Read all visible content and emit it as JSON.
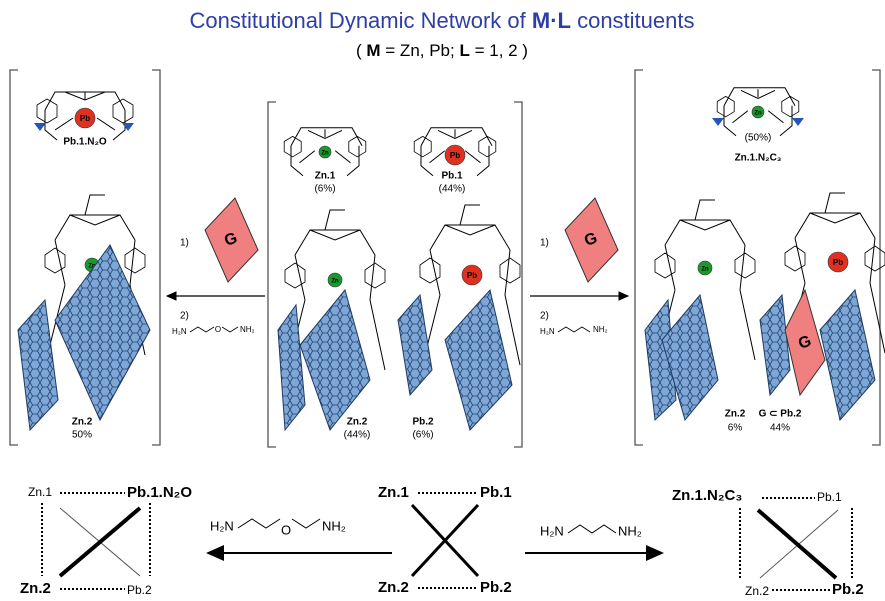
{
  "title": {
    "start": "Constitutional Dynamic Network of ",
    "bold": "M·L",
    "end": " constituents"
  },
  "subtitle": {
    "open": "( ",
    "m": "M",
    "mid": " = Zn, Pb; ",
    "l": "L",
    "end": " = 1, 2 )"
  },
  "left_panel": {
    "top_label": "Pb.1.N₂O",
    "metal_top": "Pb",
    "metal_bottom": "Zn",
    "bottom_label": "Zn.2",
    "bottom_pct": "50%"
  },
  "center_panel": {
    "zn1": "Zn.1",
    "zn1_pct": "(6%)",
    "pb1": "Pb.1",
    "pb1_pct": "(44%)",
    "zn2": "Zn.2",
    "zn2_pct": "(44%)",
    "pb2": "Pb.2",
    "pb2_pct": "(6%)",
    "metal_zn1": "Zn",
    "metal_pb1": "Pb",
    "metal_zn2": "Zn",
    "metal_pb2": "Pb"
  },
  "right_panel": {
    "top_pct": "(50%)",
    "top_label": "Zn.1.N₂C₃",
    "metal_top": "Zn",
    "metal_zn2": "Zn",
    "metal_pb2": "Pb",
    "guest": "G",
    "zn2": "Zn.2",
    "zn2_pct": "6%",
    "pb2": "G ⊂ Pb.2",
    "pb2_pct": "44%"
  },
  "left_arrow": {
    "step1": "1)",
    "guest": "G",
    "step2": "2)",
    "h2n": "H₂N",
    "o": "O",
    "nh2": "NH₂"
  },
  "right_arrow": {
    "step1": "1)",
    "guest": "G",
    "step2": "2)",
    "h2n": "H₂N",
    "nh2": "NH₂"
  },
  "bottom_left": {
    "tl": "Zn.1",
    "tr": "Pb.1.N₂O",
    "bl": "Zn.2",
    "br": "Pb.2"
  },
  "bottom_center": {
    "tl": "Zn.1",
    "tr": "Pb.1",
    "bl": "Zn.2",
    "br": "Pb.2"
  },
  "bottom_right": {
    "tl": "Zn.1.N₂C₃",
    "tr": "Pb.1",
    "bl": "Zn.2",
    "br": "Pb.2"
  },
  "bottom_left_reagent": {
    "h2n": "H₂N",
    "o": "O",
    "nh2": "NH₂"
  },
  "bottom_right_reagent": {
    "h2n": "H₂N",
    "nh2": "NH₂"
  }
}
